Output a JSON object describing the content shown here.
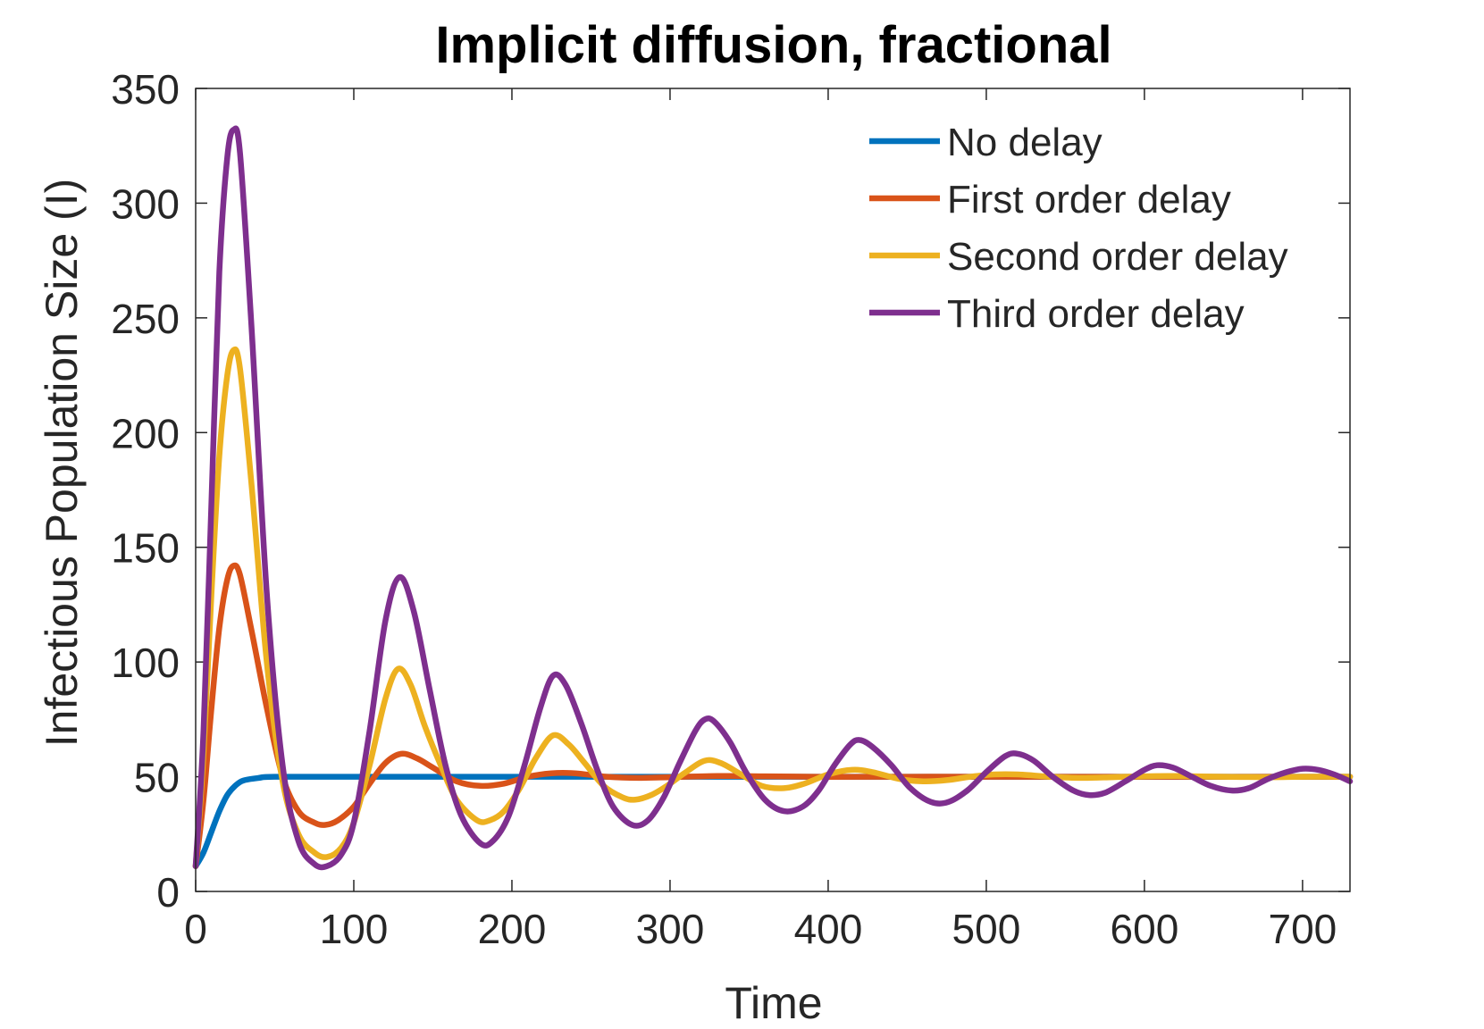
{
  "chart_data": {
    "type": "line",
    "title": "Implicit diffusion, fractional",
    "xlabel": "Time",
    "ylabel": "Infectious Population Size (I)",
    "xlim": [
      0,
      730
    ],
    "ylim": [
      0,
      350
    ],
    "xticks": [
      0,
      100,
      200,
      300,
      400,
      500,
      600,
      700
    ],
    "yticks": [
      0,
      50,
      100,
      150,
      200,
      250,
      300,
      350
    ],
    "grid": false,
    "legend_position": "top-right",
    "series": [
      {
        "name": "No delay",
        "color": "#0072BD",
        "points": [
          [
            0,
            11
          ],
          [
            5,
            17
          ],
          [
            10,
            26
          ],
          [
            15,
            35
          ],
          [
            20,
            42
          ],
          [
            25,
            46
          ],
          [
            30,
            48.3
          ],
          [
            40,
            49.5
          ],
          [
            50,
            50
          ],
          [
            100,
            50
          ],
          [
            200,
            50
          ],
          [
            300,
            50
          ],
          [
            400,
            50
          ],
          [
            500,
            50
          ],
          [
            600,
            50
          ],
          [
            700,
            50
          ],
          [
            730,
            50
          ]
        ]
      },
      {
        "name": "First order delay",
        "color": "#D95319",
        "points": [
          [
            0,
            11
          ],
          [
            5,
            40
          ],
          [
            10,
            80
          ],
          [
            15,
            115
          ],
          [
            20,
            136
          ],
          [
            24,
            142
          ],
          [
            28,
            138
          ],
          [
            35,
            115
          ],
          [
            45,
            80
          ],
          [
            55,
            50
          ],
          [
            65,
            35
          ],
          [
            75,
            30
          ],
          [
            82,
            29
          ],
          [
            90,
            31
          ],
          [
            100,
            37
          ],
          [
            110,
            47
          ],
          [
            120,
            56
          ],
          [
            130,
            60
          ],
          [
            140,
            58
          ],
          [
            150,
            54
          ],
          [
            165,
            48
          ],
          [
            180,
            46
          ],
          [
            195,
            47
          ],
          [
            210,
            50
          ],
          [
            225,
            51.5
          ],
          [
            240,
            51.5
          ],
          [
            260,
            50
          ],
          [
            280,
            49.5
          ],
          [
            300,
            49.8
          ],
          [
            330,
            50.3
          ],
          [
            360,
            50.2
          ],
          [
            400,
            49.9
          ],
          [
            450,
            50
          ],
          [
            500,
            50
          ],
          [
            600,
            50
          ],
          [
            700,
            50
          ],
          [
            730,
            50
          ]
        ]
      },
      {
        "name": "Second order delay",
        "color": "#EDB120",
        "points": [
          [
            0,
            11
          ],
          [
            5,
            60
          ],
          [
            10,
            130
          ],
          [
            15,
            190
          ],
          [
            20,
            225
          ],
          [
            24,
            236
          ],
          [
            28,
            228
          ],
          [
            35,
            180
          ],
          [
            45,
            100
          ],
          [
            55,
            48
          ],
          [
            65,
            25
          ],
          [
            75,
            17
          ],
          [
            83,
            15
          ],
          [
            92,
            19
          ],
          [
            100,
            30
          ],
          [
            110,
            55
          ],
          [
            120,
            84
          ],
          [
            128,
            97
          ],
          [
            136,
            90
          ],
          [
            145,
            72
          ],
          [
            155,
            55
          ],
          [
            165,
            40
          ],
          [
            178,
            31
          ],
          [
            186,
            31
          ],
          [
            195,
            35
          ],
          [
            205,
            45
          ],
          [
            215,
            58
          ],
          [
            226,
            68
          ],
          [
            236,
            64
          ],
          [
            246,
            56
          ],
          [
            258,
            46
          ],
          [
            270,
            41
          ],
          [
            278,
            40
          ],
          [
            288,
            42
          ],
          [
            298,
            46
          ],
          [
            310,
            52
          ],
          [
            322,
            57
          ],
          [
            332,
            56
          ],
          [
            345,
            51
          ],
          [
            358,
            46
          ],
          [
            372,
            45
          ],
          [
            385,
            47
          ],
          [
            400,
            51
          ],
          [
            415,
            53
          ],
          [
            428,
            52
          ],
          [
            445,
            49
          ],
          [
            460,
            48
          ],
          [
            475,
            48.5
          ],
          [
            490,
            50
          ],
          [
            505,
            51
          ],
          [
            520,
            51
          ],
          [
            540,
            50
          ],
          [
            560,
            49.5
          ],
          [
            580,
            49.8
          ],
          [
            600,
            50.2
          ],
          [
            620,
            50.3
          ],
          [
            650,
            50
          ],
          [
            680,
            49.8
          ],
          [
            700,
            50
          ],
          [
            730,
            50
          ]
        ]
      },
      {
        "name": "Third order delay",
        "color": "#7E2F8E",
        "points": [
          [
            0,
            11
          ],
          [
            5,
            70
          ],
          [
            10,
            170
          ],
          [
            15,
            270
          ],
          [
            20,
            320
          ],
          [
            24,
            332
          ],
          [
            28,
            322
          ],
          [
            35,
            250
          ],
          [
            45,
            130
          ],
          [
            55,
            55
          ],
          [
            65,
            22
          ],
          [
            75,
            12
          ],
          [
            83,
            11
          ],
          [
            92,
            16
          ],
          [
            100,
            30
          ],
          [
            110,
            70
          ],
          [
            120,
            118
          ],
          [
            129,
            137
          ],
          [
            138,
            122
          ],
          [
            148,
            88
          ],
          [
            158,
            55
          ],
          [
            168,
            33
          ],
          [
            180,
            21
          ],
          [
            188,
            22
          ],
          [
            198,
            33
          ],
          [
            208,
            55
          ],
          [
            218,
            80
          ],
          [
            226,
            94
          ],
          [
            234,
            90
          ],
          [
            244,
            73
          ],
          [
            254,
            53
          ],
          [
            264,
            37
          ],
          [
            276,
            29
          ],
          [
            286,
            31
          ],
          [
            296,
            41
          ],
          [
            306,
            56
          ],
          [
            316,
            70
          ],
          [
            322,
            75
          ],
          [
            328,
            74
          ],
          [
            338,
            65
          ],
          [
            348,
            52
          ],
          [
            360,
            40
          ],
          [
            372,
            35
          ],
          [
            384,
            37
          ],
          [
            394,
            44
          ],
          [
            404,
            55
          ],
          [
            414,
            64
          ],
          [
            420,
            66
          ],
          [
            428,
            63
          ],
          [
            440,
            55
          ],
          [
            452,
            45
          ],
          [
            465,
            39
          ],
          [
            476,
            39
          ],
          [
            488,
            44
          ],
          [
            500,
            52
          ],
          [
            512,
            59
          ],
          [
            520,
            60
          ],
          [
            530,
            57
          ],
          [
            542,
            50
          ],
          [
            555,
            44
          ],
          [
            565,
            42
          ],
          [
            575,
            43
          ],
          [
            588,
            48
          ],
          [
            600,
            53
          ],
          [
            608,
            55
          ],
          [
            618,
            54
          ],
          [
            630,
            50
          ],
          [
            642,
            46
          ],
          [
            655,
            44
          ],
          [
            666,
            45
          ],
          [
            678,
            49
          ],
          [
            690,
            52
          ],
          [
            700,
            53.5
          ],
          [
            710,
            53
          ],
          [
            720,
            51
          ],
          [
            730,
            48
          ]
        ]
      }
    ]
  }
}
